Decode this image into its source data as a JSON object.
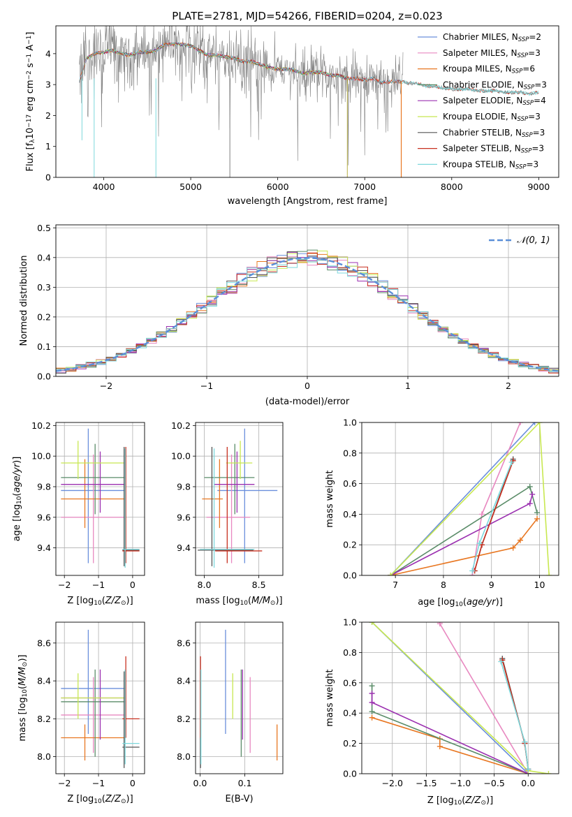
{
  "figure_title": "PLATE=2781, MJD=54266, FIBERID=0204, z=0.023",
  "colors": {
    "Chabrier MILES": "#6a8fdc",
    "Salpeter MILES": "#e888c0",
    "Kroupa MILES": "#e87722",
    "Chabrier ELODIE": "#5a8c68",
    "Salpeter ELODIE": "#9b30b0",
    "Kroupa ELODIE": "#c8e850",
    "Chabrier STELIB": "#555555",
    "Salpeter STELIB": "#c83020",
    "Kroupa STELIB": "#7dd8dc",
    "data": "#808080",
    "normal": "#5b8fd8",
    "grid": "#b0b0b0"
  },
  "chart_data": [
    {
      "id": "spectrum",
      "type": "line",
      "xlabel": "wavelength [Angstrom, rest frame]",
      "ylabel_parts": [
        "Flux [f",
        "λ",
        "10",
        "−17",
        " erg cm",
        "−2",
        " s",
        "−1",
        " A",
        "−1",
        "]"
      ],
      "xlim": [
        3450,
        9230
      ],
      "ylim": [
        0,
        4.9
      ],
      "xticks": [
        4000,
        5000,
        6000,
        7000,
        8000,
        9000
      ],
      "yticks": [
        0,
        1,
        2,
        3,
        4
      ],
      "grid": false,
      "legend_position": "upper-right",
      "legend": [
        {
          "name": "Chabrier MILES",
          "nssp": "2"
        },
        {
          "name": "Salpeter MILES",
          "nssp": "3"
        },
        {
          "name": "Kroupa MILES",
          "nssp": "6"
        },
        {
          "name": "Chabrier ELODIE",
          "nssp": "3"
        },
        {
          "name": "Salpeter ELODIE",
          "nssp": "4"
        },
        {
          "name": "Kroupa ELODIE",
          "nssp": "3"
        },
        {
          "name": "Chabrier STELIB",
          "nssp": "3"
        },
        {
          "name": "Salpeter STELIB",
          "nssp": "3"
        },
        {
          "name": "Kroupa STELIB",
          "nssp": "3"
        }
      ],
      "continuum": {
        "x": [
          3720,
          3800,
          3900,
          4000,
          4100,
          4200,
          4300,
          4400,
          4500,
          4600,
          4700,
          4800,
          4900,
          5000,
          5100,
          5200,
          5300,
          5400,
          5500,
          5600,
          5700,
          5800,
          5900,
          6000,
          6100,
          6200,
          6300,
          6400,
          6500,
          6600,
          6700,
          6800,
          6900,
          7000,
          7100,
          7200,
          7300,
          7400,
          7500,
          7600,
          7700,
          7800,
          7900,
          8000,
          8100,
          8200,
          8300,
          8400,
          8500,
          8600,
          8700,
          8800,
          8900,
          9000
        ],
        "y": [
          3.1,
          3.85,
          4.0,
          4.05,
          4.1,
          4.0,
          3.95,
          4.05,
          4.05,
          4.1,
          4.3,
          4.3,
          4.3,
          4.25,
          4.1,
          3.95,
          3.95,
          3.9,
          3.85,
          3.75,
          3.75,
          3.65,
          3.55,
          3.5,
          3.5,
          3.45,
          3.35,
          3.4,
          3.4,
          3.3,
          3.3,
          3.2,
          3.2,
          3.15,
          3.2,
          3.05,
          3.1,
          3.1,
          3.05,
          3.05,
          2.95,
          2.95,
          2.9,
          2.85,
          2.85,
          2.85,
          2.8,
          2.8,
          2.8,
          2.75,
          2.75,
          2.75,
          2.7,
          2.75
        ]
      },
      "model_end_wavelength": 7420,
      "drops": [
        {
          "x": 3750,
          "y": 1.2
        },
        {
          "x": 3890,
          "y": 0.0
        },
        {
          "x": 4600,
          "y": 0.0
        },
        {
          "x": 5450,
          "y": 0.0
        },
        {
          "x": 6800,
          "y": 0.0
        }
      ]
    },
    {
      "id": "residuals",
      "type": "area",
      "xlabel": "(data-model)/error",
      "ylabel": "Normed distribution",
      "xlim": [
        -2.5,
        2.5
      ],
      "ylim": [
        0,
        0.51
      ],
      "xticks": [
        -2,
        -1,
        0,
        1,
        2
      ],
      "yticks": [
        0.0,
        0.1,
        0.2,
        0.3,
        0.4,
        0.5
      ],
      "grid": true,
      "legend_position": "upper-right",
      "reference_curve": "N(0,1)",
      "legend_label": "𝒩(0, 1)",
      "bin_width": 0.1
    },
    {
      "id": "z-age",
      "type": "scatter",
      "xlabel": "Z [log10(Z/Z⊙)]",
      "ylabel": "age [log10(age/yr)]",
      "xlim": [
        -2.25,
        0.35
      ],
      "ylim": [
        9.22,
        10.22
      ],
      "xticks": [
        -2,
        -1,
        0
      ],
      "yticks": [
        9.4,
        9.6,
        9.8,
        10.0,
        10.2
      ],
      "grid": true
    },
    {
      "id": "mass-age",
      "type": "scatter",
      "xlabel": "mass [log10(M/M⊙)]",
      "ylabel": "",
      "xlim": [
        7.92,
        8.72
      ],
      "ylim": [
        9.22,
        10.22
      ],
      "xticks": [
        8.0,
        8.5
      ],
      "yticks": [
        9.4,
        9.6,
        9.8,
        10.0,
        10.2
      ],
      "grid": true
    },
    {
      "id": "age-weight",
      "type": "line",
      "xlabel": "age [log10(age/yr)]",
      "ylabel": "mass weight",
      "xlim": [
        6.3,
        10.4
      ],
      "ylim": [
        0,
        1.0
      ],
      "xticks": [
        7,
        8,
        9,
        10
      ],
      "yticks": [
        0.0,
        0.2,
        0.4,
        0.6,
        0.8,
        1.0
      ],
      "grid": true
    },
    {
      "id": "z-mass",
      "type": "scatter",
      "xlabel": "Z [log10(Z/Z⊙)]",
      "ylabel": "mass [log10(M/M⊙)]",
      "xlim": [
        -2.25,
        0.35
      ],
      "ylim": [
        7.91,
        8.71
      ],
      "xticks": [
        -2,
        -1,
        0
      ],
      "yticks": [
        8.0,
        8.2,
        8.4,
        8.6
      ],
      "grid": true
    },
    {
      "id": "ebv-mass",
      "type": "scatter",
      "xlabel": "E(B-V)",
      "ylabel": "",
      "xlim": [
        -0.01,
        0.185
      ],
      "ylim": [
        7.91,
        8.71
      ],
      "xticks": [
        0.0,
        0.1
      ],
      "yticks": [
        8.0,
        8.2,
        8.4,
        8.6
      ],
      "grid": true
    },
    {
      "id": "z-weight",
      "type": "line",
      "xlabel": "Z [log10(Z/Z⊙)]",
      "ylabel": "mass weight",
      "xlim": [
        -2.45,
        0.45
      ],
      "ylim": [
        0,
        1.0
      ],
      "xticks": [
        -2.0,
        -1.5,
        -1.0,
        -0.5,
        0.0
      ],
      "yticks": [
        0.0,
        0.2,
        0.4,
        0.6,
        0.8,
        1.0
      ],
      "grid": true
    }
  ],
  "solutions": [
    {
      "name": "Chabrier MILES",
      "age": 9.775,
      "age_lo": 9.3,
      "age_hi": 10.18,
      "Z": -0.9,
      "Z_lo": -2.1,
      "Z_hi": -0.2,
      "Z_mark": -1.3,
      "mass": 8.36,
      "mass_lo": 8.12,
      "mass_hi": 8.67,
      "mass_mark": 8.37,
      "ebv": 0.057,
      "wt_ages": [
        6.9,
        9.9
      ],
      "wt_cum": [
        0.0,
        1.0
      ],
      "wt_Z": [
        0.0,
        -2.3
      ],
      "wt_Zcum": [
        0.0,
        1.0
      ]
    },
    {
      "name": "Salpeter MILES",
      "age": 9.6,
      "age_lo": 9.3,
      "age_hi": 10.01,
      "Z": -1.0,
      "Z_lo": -2.1,
      "Z_hi": -0.2,
      "Z_mark": -1.15,
      "mass": 8.22,
      "mass_lo": 8.02,
      "mass_hi": 8.42,
      "mass_mark": 8.25,
      "ebv": 0.112,
      "wt_ages": [
        8.6,
        8.8,
        9.6
      ],
      "wt_cum": [
        0.0,
        0.4,
        1.0
      ],
      "wt_Z": [
        0.0,
        -1.3,
        -1.3
      ],
      "wt_Zcum": [
        0.0,
        0.99,
        1.0
      ]
    },
    {
      "name": "Kroupa MILES",
      "age": 9.72,
      "age_lo": 9.53,
      "age_hi": 9.98,
      "Z": -1.2,
      "Z_lo": -2.1,
      "Z_hi": -0.2,
      "Z_mark": -1.4,
      "mass": 8.1,
      "mass_lo": 7.98,
      "mass_hi": 8.17,
      "mass_mark": 8.14,
      "ebv": 0.172,
      "wt_ages": [
        6.9,
        9.45,
        9.6,
        9.95
      ],
      "wt_cum": [
        0.0,
        0.18,
        0.23,
        0.37
      ],
      "wt_Z": [
        0.0,
        -1.3,
        -1.3,
        -2.3
      ],
      "wt_Zcum": [
        0.0,
        0.18,
        0.23,
        0.37
      ]
    },
    {
      "name": "Chabrier ELODIE",
      "age": 9.86,
      "age_lo": 9.62,
      "age_hi": 10.08,
      "Z": -1.0,
      "Z_lo": -2.1,
      "Z_hi": -0.2,
      "Z_mark": -1.1,
      "mass": 8.29,
      "mass_lo": 8.0,
      "mass_hi": 8.46,
      "mass_mark": 8.28,
      "ebv": 0.092,
      "wt_ages": [
        6.9,
        9.8,
        9.95
      ],
      "wt_cum": [
        0.0,
        0.58,
        0.41
      ],
      "wt_Z": [
        0.0,
        -2.3,
        -2.3
      ],
      "wt_Zcum": [
        0.0,
        0.41,
        0.58
      ]
    },
    {
      "name": "Salpeter ELODIE",
      "age": 9.815,
      "age_lo": 9.63,
      "age_hi": 10.03,
      "Z": -1.0,
      "Z_lo": -2.1,
      "Z_hi": -0.2,
      "Z_mark": -0.95,
      "mass": 8.31,
      "mass_lo": 8.09,
      "mass_hi": 8.46,
      "mass_mark": 8.3,
      "ebv": 0.095,
      "wt_ages": [
        6.9,
        9.8,
        9.85
      ],
      "wt_cum": [
        0.0,
        0.47,
        0.53
      ],
      "wt_Z": [
        0.0,
        -2.3,
        -2.3
      ],
      "wt_Zcum": [
        0.0,
        0.47,
        0.53
      ]
    },
    {
      "name": "Kroupa ELODIE",
      "age": 9.955,
      "age_lo": 9.85,
      "age_hi": 10.1,
      "Z": -1.0,
      "Z_lo": -2.1,
      "Z_hi": -0.2,
      "Z_mark": -1.6,
      "mass": 8.31,
      "mass_lo": 8.2,
      "mass_hi": 8.44,
      "mass_mark": 8.33,
      "ebv": 0.073,
      "wt_ages": [
        6.9,
        10.0,
        10.2
      ],
      "wt_cum": [
        0.0,
        1.0,
        0.0
      ],
      "wt_Z": [
        0.3,
        0.0,
        -2.3
      ],
      "wt_Zcum": [
        0.0,
        0.02,
        1.0
      ]
    },
    {
      "name": "Chabrier STELIB",
      "age": 9.385,
      "age_lo": 9.28,
      "age_hi": 10.06,
      "Z": 0.0,
      "Z_lo": -0.3,
      "Z_hi": 0.2,
      "Z_mark": -0.25,
      "mass": 8.05,
      "mass_lo": 7.94,
      "mass_hi": 8.45,
      "mass_mark": 8.07,
      "ebv": 0.001,
      "wt_ages": [
        8.65,
        8.8,
        9.45
      ],
      "wt_cum": [
        0.03,
        0.2,
        0.76
      ],
      "wt_Z": [
        -0.38,
        -0.05,
        0.0
      ],
      "wt_Zcum": [
        0.76,
        0.2,
        0.03
      ]
    },
    {
      "name": "Salpeter STELIB",
      "age": 9.38,
      "age_lo": 9.3,
      "age_hi": 10.06,
      "Z": 0.0,
      "Z_lo": -0.3,
      "Z_hi": 0.2,
      "Z_mark": -0.2,
      "mass": 8.2,
      "mass_lo": 8.1,
      "mass_hi": 8.53,
      "mass_mark": 8.21,
      "ebv": 0.001,
      "wt_ages": [
        8.65,
        8.8,
        9.45
      ],
      "wt_cum": [
        0.03,
        0.2,
        0.75
      ],
      "wt_Z": [
        -0.38,
        -0.05,
        0.0
      ],
      "wt_Zcum": [
        0.75,
        0.2,
        0.03
      ]
    },
    {
      "name": "Kroupa STELIB",
      "age": 9.39,
      "age_lo": 9.27,
      "age_hi": 10.05,
      "Z": 0.0,
      "Z_lo": -0.3,
      "Z_hi": 0.2,
      "Z_mark": -0.22,
      "mass": 8.07,
      "mass_lo": 7.96,
      "mass_hi": 8.46,
      "mass_mark": 8.09,
      "ebv": 0.002,
      "wt_ages": [
        8.6,
        8.75,
        9.42
      ],
      "wt_cum": [
        0.03,
        0.21,
        0.74
      ],
      "wt_Z": [
        -0.4,
        -0.05,
        0.0
      ],
      "wt_Zcum": [
        0.74,
        0.21,
        0.03
      ]
    }
  ]
}
